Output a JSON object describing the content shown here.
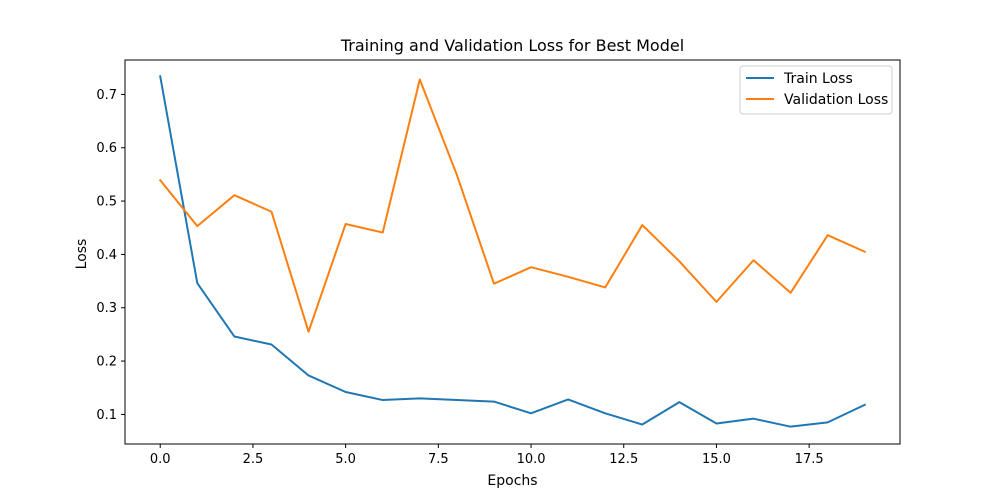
{
  "chart_data": {
    "type": "line",
    "title": "Training and Validation Loss for Best Model",
    "xlabel": "Epochs",
    "ylabel": "Loss",
    "xlim": [
      -0.95,
      19.95
    ],
    "ylim": [
      0.0445,
      0.7645
    ],
    "xticks": [
      0.0,
      2.5,
      5.0,
      7.5,
      10.0,
      12.5,
      15.0,
      17.5
    ],
    "xtick_labels": [
      "0.0",
      "2.5",
      "5.0",
      "7.5",
      "10.0",
      "12.5",
      "15.0",
      "17.5"
    ],
    "yticks": [
      0.1,
      0.2,
      0.3,
      0.4,
      0.5,
      0.6,
      0.7
    ],
    "ytick_labels": [
      "0.1",
      "0.2",
      "0.3",
      "0.4",
      "0.5",
      "0.6",
      "0.7"
    ],
    "grid": false,
    "legend_position": "top-right",
    "x": [
      0,
      1,
      2,
      3,
      4,
      5,
      6,
      7,
      8,
      9,
      10,
      11,
      12,
      13,
      14,
      15,
      16,
      17,
      18,
      19
    ],
    "series": [
      {
        "name": "Train Loss",
        "color": "#1f77b4",
        "values": [
          0.734,
          0.346,
          0.246,
          0.231,
          0.173,
          0.142,
          0.127,
          0.13,
          0.127,
          0.124,
          0.102,
          0.128,
          0.102,
          0.081,
          0.123,
          0.083,
          0.092,
          0.077,
          0.085,
          0.118
        ]
      },
      {
        "name": "Validation Loss",
        "color": "#ff7f0e",
        "values": [
          0.539,
          0.453,
          0.511,
          0.48,
          0.255,
          0.457,
          0.441,
          0.728,
          0.549,
          0.345,
          0.376,
          0.358,
          0.338,
          0.455,
          0.387,
          0.311,
          0.389,
          0.328,
          0.436,
          0.405
        ]
      }
    ]
  }
}
